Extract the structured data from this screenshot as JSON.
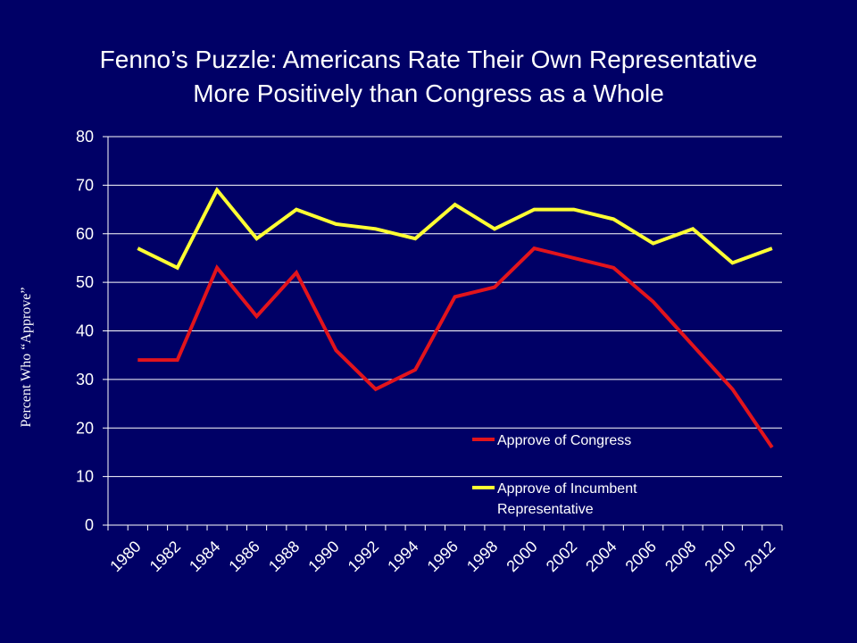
{
  "chart_data": {
    "type": "line",
    "title_line1": "Fenno’s Puzzle: Americans Rate Their Own Representative",
    "title_line2": "More Positively than Congress as a Whole",
    "xlabel": "",
    "ylabel": "Percent Who “Approve”",
    "ylim": [
      0,
      80
    ],
    "yticks": [
      "0",
      "10",
      "20",
      "30",
      "40",
      "50",
      "60",
      "70",
      "80"
    ],
    "categories": [
      "1980",
      "1982",
      "1984",
      "1986",
      "1988",
      "1990",
      "1992",
      "1994",
      "1996",
      "1998",
      "2000",
      "2002",
      "2004",
      "2006",
      "2008",
      "2010",
      "2012"
    ],
    "x": [
      1980.5,
      1982.5,
      1984.5,
      1986.5,
      1988.5,
      1990.5,
      1992.5,
      1994.5,
      1996.5,
      1998.5,
      2000.5,
      2002.5,
      2004.5,
      2006.5,
      2008.5,
      2010.5,
      2012.5
    ],
    "series": [
      {
        "name": "Approve of Congress",
        "color": "#e2141c",
        "values": [
          34,
          34,
          53,
          43,
          52,
          36,
          28,
          32,
          47,
          49,
          57,
          55,
          53,
          46,
          37,
          28,
          16
        ]
      },
      {
        "name": "Approve of Incumbent Representative",
        "legend_line1": "Approve of Incumbent",
        "legend_line2": "Representative",
        "color": "#ffff33",
        "values": [
          57,
          53,
          69,
          59,
          65,
          62,
          61,
          59,
          66,
          61,
          65,
          65,
          63,
          58,
          61,
          54,
          57
        ]
      }
    ],
    "grid": true,
    "legend_position": "inside-bottom-right"
  }
}
